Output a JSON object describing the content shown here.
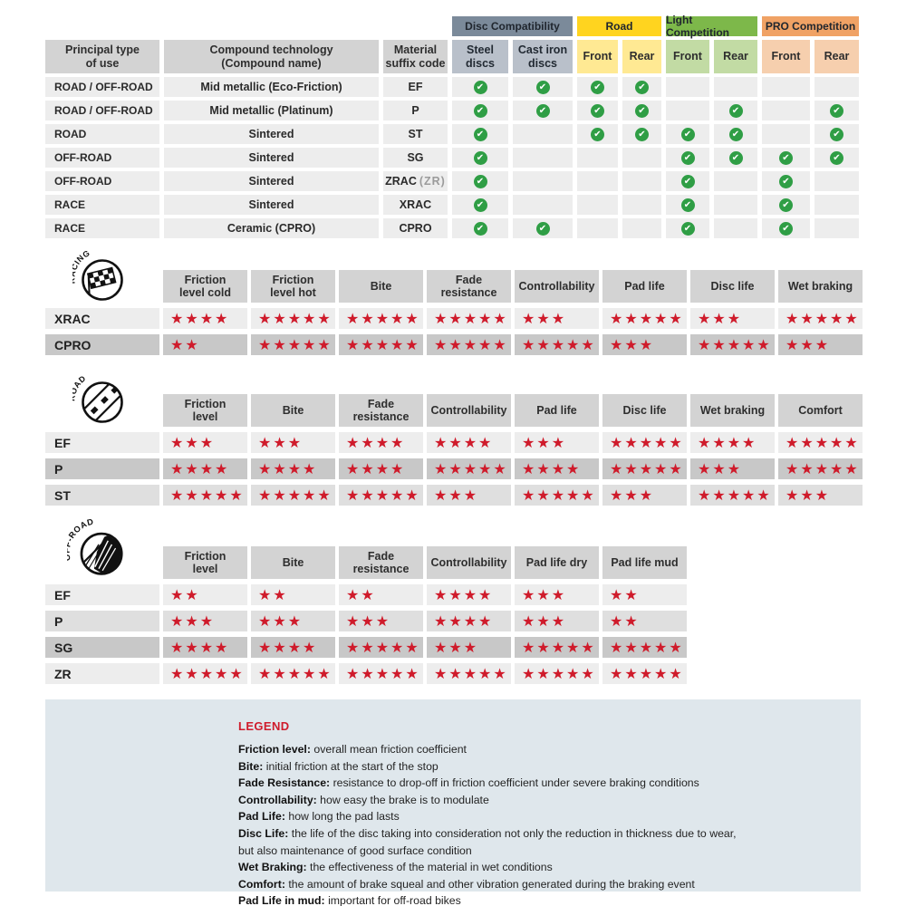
{
  "colors": {
    "star_red": "#cf1b2b",
    "check_green": "#2f9e45",
    "header_gray": "#d3d3d3",
    "row_light": "#ededed",
    "row_mid": "#dfdfdf",
    "row_dark": "#c8c8c8",
    "legend_bg": "#dfe7ec",
    "disc_band": "#7b8a9a",
    "disc_sub": "#b9c0ca",
    "road_band": "#ffd41f",
    "road_sub": "#ffe993",
    "light_band": "#7db84a",
    "light_sub": "#c2dba4",
    "pro_band": "#f0a265",
    "pro_sub": "#f6cfae"
  },
  "chart_data": [
    {
      "type": "table",
      "name": "compatibility",
      "column_groups": [
        {
          "label": "Disc Compatibility"
        },
        {
          "label": "Road"
        },
        {
          "label": "Light Competition"
        },
        {
          "label": "PRO Competition"
        }
      ],
      "columns": [
        "Principal type\nof use",
        "Compound technology\n(Compound name)",
        "Material\nsuffix code",
        "Steel\ndiscs",
        "Cast iron\ndiscs",
        "Front",
        "Rear",
        "Front",
        "Rear",
        "Front",
        "Rear"
      ],
      "rows": [
        {
          "use": "ROAD / OFF-ROAD",
          "compound": "Mid metallic (Eco-Friction)",
          "suffix": "EF",
          "note": "",
          "checks": [
            1,
            1,
            1,
            1,
            0,
            0,
            0,
            0
          ]
        },
        {
          "use": "ROAD / OFF-ROAD",
          "compound": "Mid metallic (Platinum)",
          "suffix": "P",
          "note": "",
          "checks": [
            1,
            1,
            1,
            1,
            0,
            1,
            0,
            1
          ]
        },
        {
          "use": "ROAD",
          "compound": "Sintered",
          "suffix": "ST",
          "note": "",
          "checks": [
            1,
            0,
            1,
            1,
            1,
            1,
            0,
            1
          ]
        },
        {
          "use": "OFF-ROAD",
          "compound": "Sintered",
          "suffix": "SG",
          "note": "",
          "checks": [
            1,
            0,
            0,
            0,
            1,
            1,
            1,
            1
          ]
        },
        {
          "use": "OFF-ROAD",
          "compound": "Sintered",
          "suffix": "ZRAC",
          "note": "(ZR)",
          "checks": [
            1,
            0,
            0,
            0,
            1,
            0,
            1,
            0
          ]
        },
        {
          "use": "RACE",
          "compound": "Sintered",
          "suffix": "XRAC",
          "note": "",
          "checks": [
            1,
            0,
            0,
            0,
            1,
            0,
            1,
            0
          ]
        },
        {
          "use": "RACE",
          "compound": "Ceramic (CPRO)",
          "suffix": "CPRO",
          "note": "",
          "checks": [
            1,
            1,
            0,
            0,
            1,
            0,
            1,
            0
          ]
        }
      ]
    },
    {
      "type": "table",
      "name": "racing",
      "label": "RACING",
      "rating_scale": "stars out of 5",
      "columns": [
        "Friction\nlevel cold",
        "Friction\nlevel hot",
        "Bite",
        "Fade\nresistance",
        "Controllability",
        "Pad life",
        "Disc life",
        "Wet braking"
      ],
      "rows": [
        {
          "code": "XRAC",
          "shade": "light",
          "stars": [
            4,
            5,
            5,
            5,
            3,
            5,
            3,
            5
          ]
        },
        {
          "code": "CPRO",
          "shade": "dark",
          "stars": [
            2,
            5,
            5,
            5,
            5,
            3,
            5,
            3
          ]
        }
      ]
    },
    {
      "type": "table",
      "name": "road",
      "label": "ROAD",
      "rating_scale": "stars out of 5",
      "columns": [
        "Friction\nlevel",
        "Bite",
        "Fade\nresistance",
        "Controllability",
        "Pad life",
        "Disc life",
        "Wet braking",
        "Comfort"
      ],
      "rows": [
        {
          "code": "EF",
          "shade": "light",
          "stars": [
            3,
            3,
            4,
            4,
            3,
            5,
            4,
            5
          ]
        },
        {
          "code": "P",
          "shade": "dark",
          "stars": [
            4,
            4,
            4,
            5,
            4,
            5,
            3,
            5
          ]
        },
        {
          "code": "ST",
          "shade": "mid",
          "stars": [
            5,
            5,
            5,
            3,
            5,
            3,
            5,
            3
          ]
        }
      ]
    },
    {
      "type": "table",
      "name": "offroad",
      "label": "OFF-ROAD",
      "rating_scale": "stars out of 5",
      "columns": [
        "Friction\nlevel",
        "Bite",
        "Fade\nresistance",
        "Controllability",
        "Pad life dry",
        "Pad life mud"
      ],
      "rows": [
        {
          "code": "EF",
          "shade": "light",
          "stars": [
            2,
            2,
            2,
            4,
            3,
            2
          ]
        },
        {
          "code": "P",
          "shade": "mid",
          "stars": [
            3,
            3,
            3,
            4,
            3,
            2
          ]
        },
        {
          "code": "SG",
          "shade": "dark",
          "stars": [
            4,
            4,
            5,
            3,
            5,
            5
          ]
        },
        {
          "code": "ZR",
          "shade": "light",
          "stars": [
            5,
            5,
            5,
            5,
            5,
            5
          ]
        }
      ]
    }
  ],
  "legend": {
    "title": "LEGEND",
    "lines": [
      {
        "term": "Friction level",
        "text": "overall mean friction coefficient"
      },
      {
        "term": "Bite",
        "text": "initial friction at the start of the stop"
      },
      {
        "term": "Fade Resistance",
        "text": "resistance to drop-off in friction coefficient under severe braking conditions"
      },
      {
        "term": "Controllability",
        "text": "how easy the brake is to modulate"
      },
      {
        "term": "Pad Life",
        "text": "how long the pad lasts"
      },
      {
        "term": "Disc Life",
        "text": "the life of the disc taking into consideration not only the reduction in thickness due to wear,"
      },
      {
        "term": "",
        "text": "but also maintenance of good surface condition"
      },
      {
        "term": "Wet Braking",
        "text": "the effectiveness of the material in wet conditions"
      },
      {
        "term": "Comfort",
        "text": "the amount of brake squeal and other vibration generated during the braking event"
      },
      {
        "term": "Pad Life in mud",
        "text": "important for off-road bikes"
      }
    ]
  }
}
